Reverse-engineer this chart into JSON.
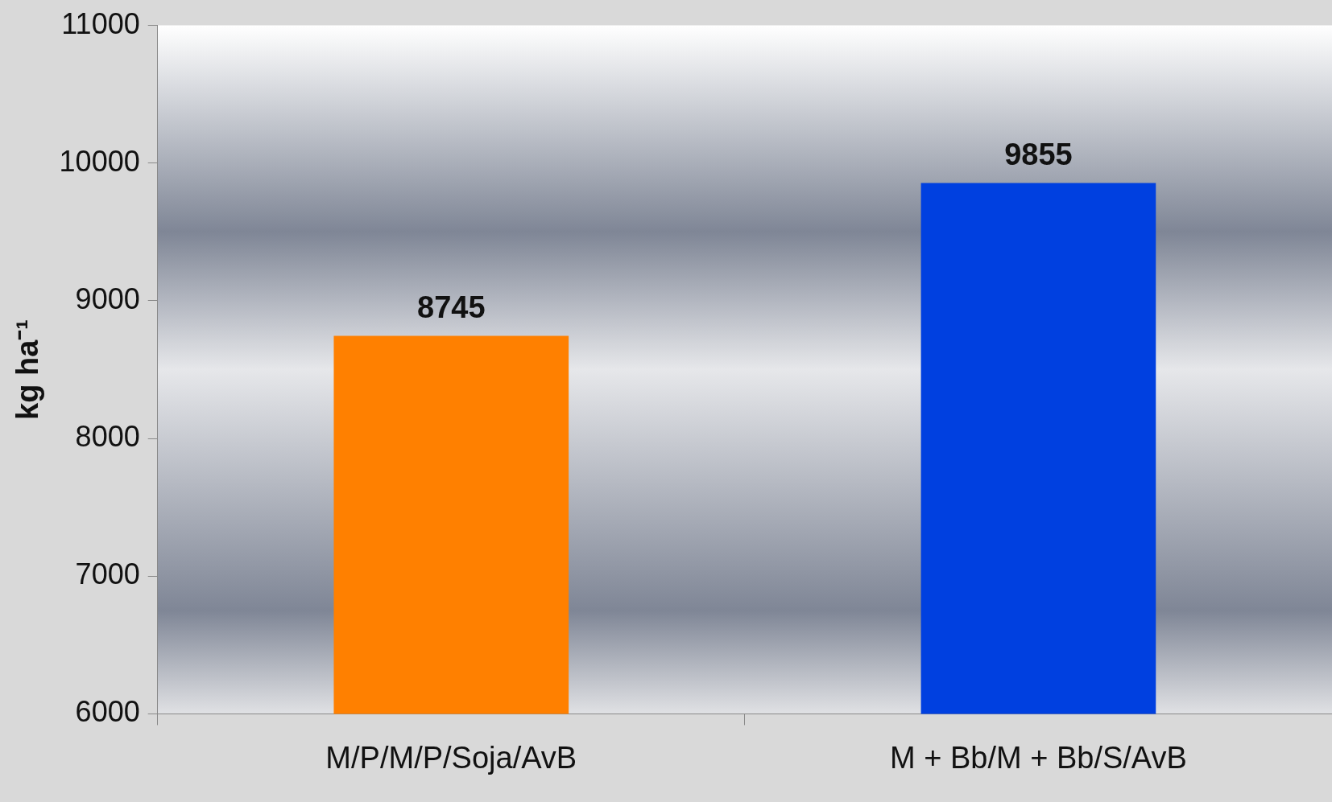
{
  "chart_data": {
    "type": "bar",
    "ylabel": "kg ha⁻¹",
    "categories": [
      "M/P/M/P/Soja/AvB",
      "M + Bb/M + Bb/S/AvB"
    ],
    "values": [
      8745,
      9855
    ],
    "colors": [
      "#ff8000",
      "#0040e0"
    ],
    "ylim": [
      6000,
      11000
    ],
    "yticks": [
      6000,
      7000,
      8000,
      9000,
      10000,
      11000
    ],
    "grid": false,
    "legend": false,
    "data_labels": true
  }
}
